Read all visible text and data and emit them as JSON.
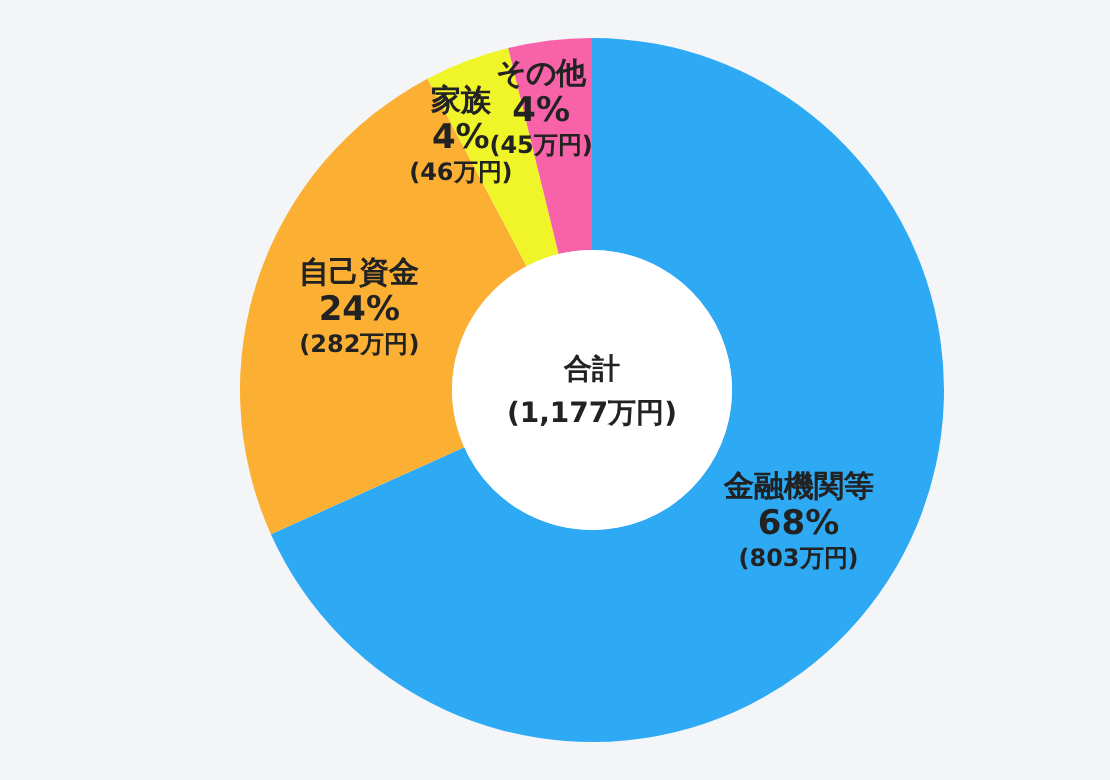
{
  "chart_data": {
    "type": "donut",
    "categories": [
      "金融機関等",
      "自己資金",
      "家族",
      "その他"
    ],
    "values": [
      803,
      282,
      46,
      45
    ],
    "colors": [
      "#2eaaf5",
      "#fbb034",
      "#f0f52a",
      "#f762a8"
    ],
    "value_labels": [
      "68%\n(803万円)",
      "24%\n(282万円)",
      "4%\n(46万円)",
      "4%\n(45万円)"
    ],
    "annotations": [
      "合計",
      "(1,177万円)"
    ]
  }
}
